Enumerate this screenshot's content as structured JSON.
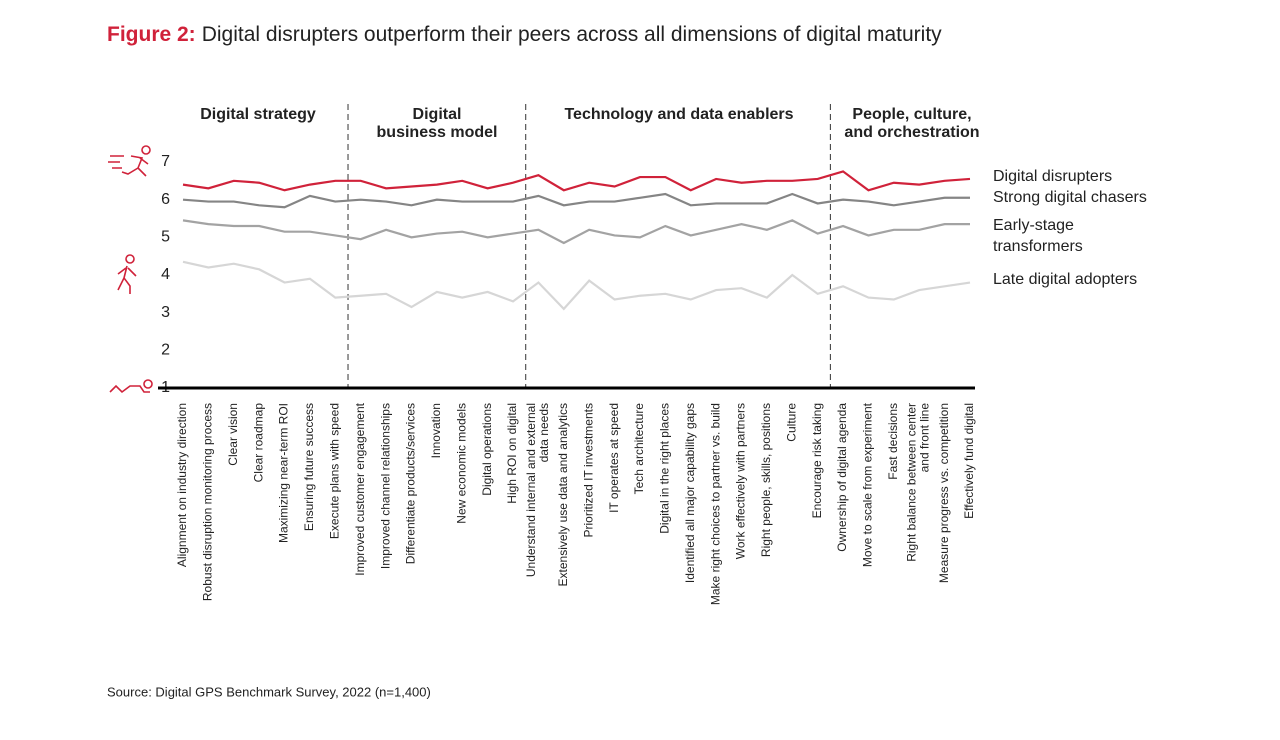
{
  "chart_data": {
    "type": "line",
    "figure_label": "Figure 2:",
    "title": "Digital disrupters outperform their peers across all dimensions of digital maturity",
    "source": "Source: Digital GPS Benchmark Survey, 2022 (n=1,400)",
    "groups": [
      "Digital strategy",
      "Digital\nbusiness model",
      "Technology and data enablers",
      "People, culture,\nand orchestration"
    ],
    "categories": [
      "Alignment on industry direction",
      "Robust disruption monitoring process",
      "Clear vision",
      "Clear roadmap",
      "Maximizing near-term ROI",
      "Ensuring future success",
      "Execute plans with speed",
      "Improved customer engagement",
      "Improved channel relationships",
      "Differentiate products/services",
      "Innovation",
      "New economic models",
      "Digital operations",
      "High ROI on digital",
      "Understand internal and external\ndata needs",
      "Extensively use data and analytics",
      "Prioritized IT investments",
      "IT operates at speed",
      "Tech architecture",
      "Digital in the right places",
      "Identified all major capability gaps",
      "Make right choices to partner vs. build",
      "Work effectively with partners",
      "Right people, skills, positions",
      "Culture",
      "Encourage risk taking",
      "Ownership of digital agenda",
      "Move to scale from experiment",
      "Fast decisions",
      "Right balance between center\nand front line",
      "Measure progress vs. competition",
      "Effectively fund digital"
    ],
    "series": [
      {
        "name": "Digital disrupters",
        "color": "#d0223a",
        "values": [
          6.4,
          6.3,
          6.5,
          6.45,
          6.25,
          6.4,
          6.5,
          6.5,
          6.3,
          6.35,
          6.4,
          6.5,
          6.3,
          6.45,
          6.65,
          6.25,
          6.45,
          6.35,
          6.6,
          6.6,
          6.25,
          6.55,
          6.45,
          6.5,
          6.5,
          6.55,
          6.75,
          6.25,
          6.45,
          6.4,
          6.5,
          6.55
        ]
      },
      {
        "name": "Strong digital chasers",
        "color": "#858585",
        "values": [
          6.0,
          5.95,
          5.95,
          5.85,
          5.8,
          6.1,
          5.95,
          6.0,
          5.95,
          5.85,
          6.0,
          5.95,
          5.95,
          5.95,
          6.1,
          5.85,
          5.95,
          5.95,
          6.05,
          6.15,
          5.85,
          5.9,
          5.9,
          5.9,
          6.15,
          5.9,
          6.0,
          5.95,
          5.85,
          5.95,
          6.05,
          6.05
        ]
      },
      {
        "name": "Early-stage\ntransformers",
        "color": "#a3a3a3",
        "values": [
          5.45,
          5.35,
          5.3,
          5.3,
          5.15,
          5.15,
          5.05,
          4.95,
          5.2,
          5.0,
          5.1,
          5.15,
          5.0,
          5.1,
          5.2,
          4.85,
          5.2,
          5.05,
          5.0,
          5.3,
          5.05,
          5.2,
          5.35,
          5.2,
          5.45,
          5.1,
          5.3,
          5.05,
          5.2,
          5.2,
          5.35,
          5.35
        ]
      },
      {
        "name": "Late digital adopters",
        "color": "#d6d6d6",
        "values": [
          4.35,
          4.2,
          4.3,
          4.15,
          3.8,
          3.9,
          3.4,
          3.45,
          3.5,
          3.15,
          3.55,
          3.4,
          3.55,
          3.3,
          3.8,
          3.1,
          3.85,
          3.35,
          3.45,
          3.5,
          3.35,
          3.6,
          3.65,
          3.4,
          4.0,
          3.5,
          3.7,
          3.4,
          3.35,
          3.6,
          3.7,
          3.8
        ]
      }
    ],
    "ylim": [
      1,
      7
    ],
    "yticks": [
      1,
      2,
      3,
      4,
      5,
      6,
      7
    ]
  }
}
